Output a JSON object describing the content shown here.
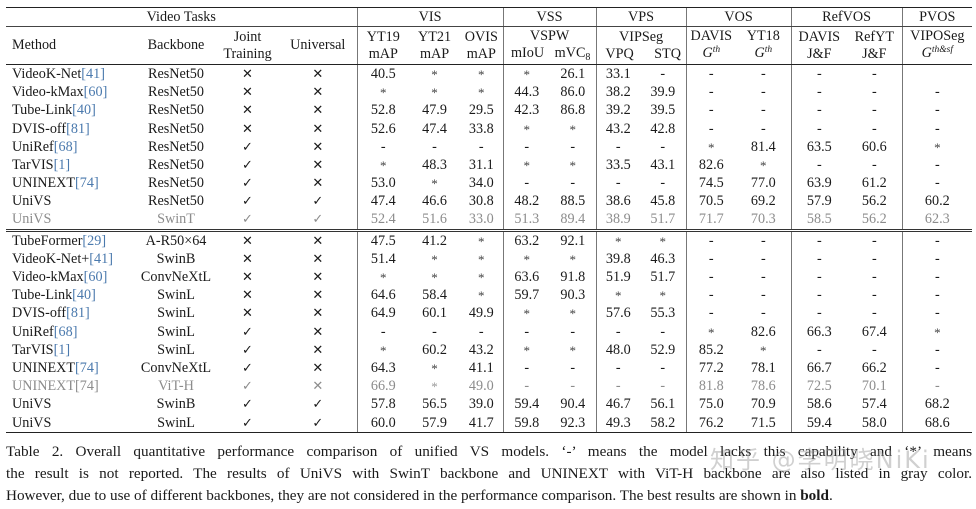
{
  "table": {
    "group_headers": [
      {
        "label": "Video Tasks",
        "colspan": 4
      },
      {
        "label": "VIS",
        "colspan": 3
      },
      {
        "label": "VSS",
        "colspan": 2
      },
      {
        "label": "VPS",
        "colspan": 2
      },
      {
        "label": "VOS",
        "colspan": 2
      },
      {
        "label": "RefVOS",
        "colspan": 2
      },
      {
        "label": "PVOS",
        "colspan": 1
      }
    ],
    "col_headers": {
      "method": "Method",
      "backbone": "Backbone",
      "joint_line1": "Joint",
      "joint_line2": "Training",
      "universal": "Universal",
      "yt19_ds": "YT19",
      "yt19_metric": "mAP",
      "yt21_ds": "YT21",
      "yt21_metric": "mAP",
      "ovis_ds": "OVIS",
      "ovis_metric": "mAP",
      "vspw_ds": "VSPW",
      "vspw_m1": "mIoU",
      "vspw_m2": "mVC",
      "vspw_m2_sub": "8",
      "vipseg_ds": "VIPSeg",
      "vipseg_m1": "VPQ",
      "vipseg_m2": "STQ",
      "davis_vos_ds": "DAVIS",
      "davis_vos_metric": "G",
      "davis_vos_sup": "th",
      "yt18_ds": "YT18",
      "yt18_metric": "G",
      "yt18_sup": "th",
      "davis_ref_ds": "DAVIS",
      "davis_ref_metric": "J&F",
      "refyt_ds": "RefYT",
      "refyt_metric": "J&F",
      "viposeg_ds": "VIPOSeg",
      "viposeg_metric": "G",
      "viposeg_sup": "th&sf"
    },
    "top_rows": [
      {
        "method": "VideoK-Net",
        "ref": "[41]",
        "backbone": "ResNet50",
        "joint": "✕",
        "universal": "✕",
        "values": [
          "40.5",
          "*",
          "*",
          "*",
          "26.1",
          "33.1",
          "-",
          "-",
          "-",
          "-",
          "-",
          ""
        ],
        "bold": [],
        "gray": false
      },
      {
        "method": "Video-kMax",
        "ref": "[60]",
        "backbone": "ResNet50",
        "joint": "✕",
        "universal": "✕",
        "values": [
          "*",
          "*",
          "*",
          "44.3",
          "86.0",
          "38.2",
          "39.9",
          "-",
          "-",
          "-",
          "-",
          "-"
        ],
        "bold": [],
        "gray": false
      },
      {
        "method": "Tube-Link",
        "ref": "[40]",
        "backbone": "ResNet50",
        "joint": "✕",
        "universal": "✕",
        "values": [
          "52.8",
          "47.9",
          "29.5",
          "42.3",
          "86.8",
          "39.2",
          "39.5",
          "-",
          "-",
          "-",
          "-",
          "-"
        ],
        "bold": [],
        "gray": false
      },
      {
        "method": "DVIS-off",
        "ref": "[81]",
        "backbone": "ResNet50",
        "joint": "✕",
        "universal": "✕",
        "values": [
          "52.6",
          "47.4",
          "33.8",
          "*",
          "*",
          "43.2",
          "42.8",
          "-",
          "-",
          "-",
          "-",
          "-"
        ],
        "bold": [
          5
        ],
        "gray": false
      },
      {
        "method": "UniRef",
        "ref": "[68]",
        "backbone": "ResNet50",
        "joint": "✓",
        "universal": "✕",
        "values": [
          "-",
          "-",
          "-",
          "-",
          "-",
          "-",
          "-",
          "*",
          "81.4",
          "63.5",
          "60.6",
          "*"
        ],
        "bold": [
          8
        ],
        "gray": false
      },
      {
        "method": "TarVIS",
        "ref": "[1]",
        "backbone": "ResNet50",
        "joint": "✓",
        "universal": "✕",
        "values": [
          "*",
          "48.3",
          "31.1",
          "*",
          "*",
          "33.5",
          "43.1",
          "82.6",
          "*",
          "-",
          "-",
          "-"
        ],
        "bold": [
          1,
          7
        ],
        "gray": false
      },
      {
        "method": "UNINEXT",
        "ref": "[74]",
        "backbone": "ResNet50",
        "joint": "✓",
        "universal": "✕",
        "values": [
          "53.0",
          "*",
          "34.0",
          "-",
          "-",
          "-",
          "-",
          "74.5",
          "77.0",
          "63.9",
          "61.2",
          "-"
        ],
        "bold": [
          0,
          2,
          9,
          10
        ],
        "gray": false
      },
      {
        "method": "UniVS",
        "ref": "",
        "backbone": "ResNet50",
        "joint": "✓",
        "universal": "✓",
        "values": [
          "47.4",
          "46.6",
          "30.8",
          "48.2",
          "88.5",
          "38.6",
          "45.8",
          "70.5",
          "69.2",
          "57.9",
          "56.2",
          "60.2"
        ],
        "bold": [
          3,
          4,
          6,
          11
        ],
        "gray": false
      },
      {
        "method": "UniVS",
        "ref": "",
        "backbone": "SwinT",
        "joint": "✓",
        "universal": "✓",
        "values": [
          "52.4",
          "51.6",
          "33.0",
          "51.3",
          "89.4",
          "38.9",
          "51.7",
          "71.7",
          "70.3",
          "58.5",
          "56.2",
          "62.3"
        ],
        "bold": [],
        "gray": true
      }
    ],
    "bottom_rows": [
      {
        "method": "TubeFormer",
        "ref": "[29]",
        "backbone": "A-R50×64",
        "joint": "✕",
        "universal": "✕",
        "values": [
          "47.5",
          "41.2",
          "*",
          "63.2",
          "92.1",
          "*",
          "*",
          "-",
          "-",
          "-",
          "-",
          "-"
        ],
        "bold": [],
        "gray": false
      },
      {
        "method": "VideoK-Net+",
        "ref": "[41]",
        "backbone": "SwinB",
        "joint": "✕",
        "universal": "✕",
        "values": [
          "51.4",
          "*",
          "*",
          "*",
          "*",
          "39.8",
          "46.3",
          "-",
          "-",
          "-",
          "-",
          "-"
        ],
        "bold": [],
        "gray": false
      },
      {
        "method": "Video-kMax",
        "ref": "[60]",
        "backbone": "ConvNeXtL",
        "joint": "✕",
        "universal": "✕",
        "values": [
          "*",
          "*",
          "*",
          "63.6",
          "91.8",
          "51.9",
          "51.7",
          "-",
          "-",
          "-",
          "-",
          "-"
        ],
        "bold": [
          3
        ],
        "gray": false
      },
      {
        "method": "Tube-Link",
        "ref": "[40]",
        "backbone": "SwinL",
        "joint": "✕",
        "universal": "✕",
        "values": [
          "64.6",
          "58.4",
          "*",
          "59.7",
          "90.3",
          "*",
          "*",
          "-",
          "-",
          "-",
          "-",
          "-"
        ],
        "bold": [],
        "gray": false
      },
      {
        "method": "DVIS-off",
        "ref": "[81]",
        "backbone": "SwinL",
        "joint": "✕",
        "universal": "✕",
        "values": [
          "64.9",
          "60.1",
          "49.9",
          "*",
          "*",
          "57.6",
          "55.3",
          "-",
          "-",
          "-",
          "-",
          "-"
        ],
        "bold": [
          0,
          2,
          5
        ],
        "gray": false
      },
      {
        "method": "UniRef",
        "ref": "[68]",
        "backbone": "SwinL",
        "joint": "✓",
        "universal": "✕",
        "values": [
          "-",
          "-",
          "-",
          "-",
          "-",
          "-",
          "-",
          "*",
          "82.6",
          "66.3",
          "67.4",
          "*"
        ],
        "bold": [
          8,
          10
        ],
        "gray": false
      },
      {
        "method": "TarVIS",
        "ref": "[1]",
        "backbone": "SwinL",
        "joint": "✓",
        "universal": "✕",
        "values": [
          "*",
          "60.2",
          "43.2",
          "*",
          "*",
          "48.0",
          "52.9",
          "85.2",
          "*",
          "-",
          "-",
          "-"
        ],
        "bold": [
          1,
          7
        ],
        "gray": false
      },
      {
        "method": "UNINEXT",
        "ref": "[74]",
        "backbone": "ConvNeXtL",
        "joint": "✓",
        "universal": "✕",
        "values": [
          "64.3",
          "*",
          "41.1",
          "-",
          "-",
          "-",
          "-",
          "77.2",
          "78.1",
          "66.7",
          "66.2",
          "-"
        ],
        "bold": [
          9
        ],
        "gray": false
      },
      {
        "method": "UNINEXT",
        "ref": "[74]",
        "backbone": "ViT-H",
        "joint": "✓",
        "universal": "✕",
        "values": [
          "66.9",
          "*",
          "49.0",
          "-",
          "-",
          "-",
          "-",
          "81.8",
          "78.6",
          "72.5",
          "70.1",
          "-"
        ],
        "bold": [],
        "gray": true
      },
      {
        "method": "UniVS",
        "ref": "",
        "backbone": "SwinB",
        "joint": "✓",
        "universal": "✓",
        "values": [
          "57.8",
          "56.5",
          "39.0",
          "59.4",
          "90.4",
          "46.7",
          "56.1",
          "75.0",
          "70.9",
          "58.6",
          "57.4",
          "68.2"
        ],
        "bold": [],
        "gray": false
      },
      {
        "method": "UniVS",
        "ref": "",
        "backbone": "SwinL",
        "joint": "✓",
        "universal": "✓",
        "values": [
          "60.0",
          "57.9",
          "41.7",
          "59.8",
          "92.3",
          "49.3",
          "58.2",
          "76.2",
          "71.5",
          "59.4",
          "58.0",
          "68.6"
        ],
        "bold": [
          4,
          6,
          11
        ],
        "gray": false
      }
    ]
  },
  "caption": {
    "line1": "Table 2.  Overall quantitative performance comparison of unified VS models.  ‘-’ means the model lacks this capability and ‘*’ means",
    "line2": "the result is not reported. The results of UniVS with SwinT backbone and UNINEXT with ViT-H backbone are also listed in gray color.",
    "line3_pre": "However, due to use of different backbones, they are not considered in the performance comparison. The best results are shown in ",
    "line3_bold": "bold",
    "line3_post": "."
  },
  "watermark": "知乎 @李明晓NiKi",
  "colors": {
    "text": "#1a1a1a",
    "reference_link": "#4a79ad",
    "gray_row": "#8c8c8c"
  }
}
